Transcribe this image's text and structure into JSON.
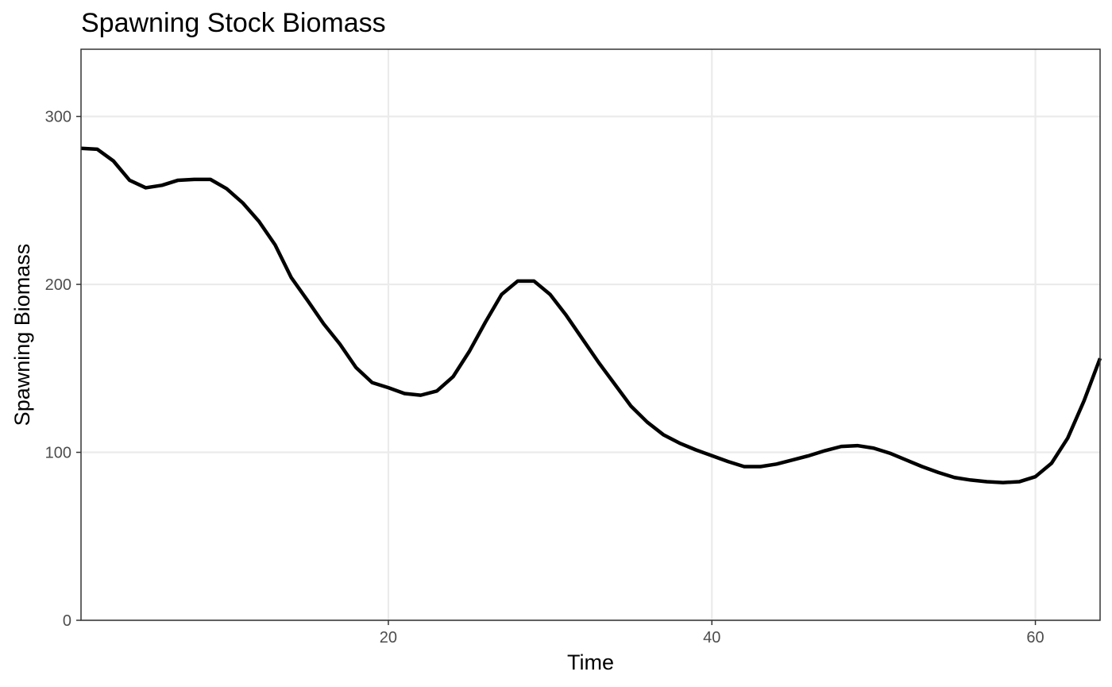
{
  "chart_data": {
    "type": "line",
    "title": "Spawning Stock Biomass",
    "xlabel": "Time",
    "ylabel": "Spawning Biomass",
    "xlim": [
      1,
      64
    ],
    "ylim": [
      0,
      340
    ],
    "x_ticks": [
      20,
      40,
      60
    ],
    "y_ticks": [
      0,
      100,
      200,
      300
    ],
    "grid": true,
    "legend": "none",
    "series": [
      {
        "color": "#000000",
        "x": [
          1,
          2,
          3,
          4,
          5,
          6,
          7,
          8,
          9,
          10,
          11,
          12,
          13,
          14,
          15,
          16,
          17,
          18,
          19,
          20,
          21,
          22,
          23,
          24,
          25,
          26,
          27,
          28,
          29,
          30,
          31,
          32,
          33,
          34,
          35,
          36,
          37,
          38,
          39,
          40,
          41,
          42,
          43,
          44,
          45,
          46,
          47,
          48,
          49,
          50,
          51,
          52,
          53,
          54,
          55,
          56,
          57,
          58,
          59,
          60,
          61,
          62,
          63,
          64
        ],
        "y": [
          281,
          280.5,
          273.5,
          262,
          257.5,
          259,
          262,
          262.5,
          262.5,
          257,
          248.5,
          237.5,
          223.5,
          204,
          190.5,
          176.5,
          164.5,
          150.5,
          141.5,
          138.5,
          135,
          134,
          136.5,
          145,
          160,
          177.5,
          194,
          202,
          202,
          194,
          181.5,
          167.5,
          153.5,
          140.5,
          127.5,
          118,
          110.5,
          105.5,
          101.5,
          98,
          94.5,
          91.5,
          91.5,
          93,
          95.5,
          98,
          101,
          103.5,
          104,
          102.5,
          99.5,
          95.5,
          91.5,
          88,
          85,
          83.5,
          82.5,
          82,
          82.5,
          85.5,
          93.5,
          108.5,
          130.5,
          156
        ]
      }
    ]
  }
}
